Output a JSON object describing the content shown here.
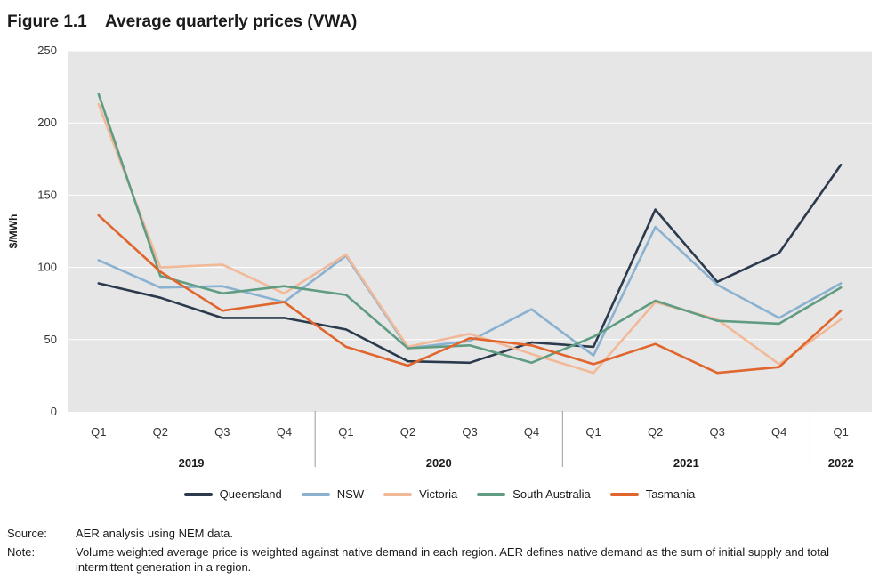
{
  "figure": {
    "number": "Figure 1.1",
    "title": "Average quarterly prices (VWA)"
  },
  "chart_data": {
    "type": "line",
    "title": "Average quarterly prices (VWA)",
    "ylabel": "$/MWh",
    "xlabel": "",
    "ylim": [
      0,
      250
    ],
    "yticks": [
      0,
      50,
      100,
      150,
      200,
      250
    ],
    "grid": true,
    "legend_position": "bottom",
    "categories": [
      "Q1",
      "Q2",
      "Q3",
      "Q4",
      "Q1",
      "Q2",
      "Q3",
      "Q4",
      "Q1",
      "Q2",
      "Q3",
      "Q4",
      "Q1"
    ],
    "years": [
      {
        "label": "2019",
        "quarters": 4
      },
      {
        "label": "2020",
        "quarters": 4
      },
      {
        "label": "2021",
        "quarters": 4
      },
      {
        "label": "2022",
        "quarters": 1
      }
    ],
    "series": [
      {
        "name": "Queensland",
        "color": "#2b3a4c",
        "values": [
          89,
          79,
          65,
          65,
          57,
          35,
          34,
          48,
          45,
          140,
          90,
          110,
          171
        ]
      },
      {
        "name": "NSW",
        "color": "#8ab2d0",
        "values": [
          105,
          86,
          87,
          76,
          108,
          44,
          49,
          71,
          39,
          128,
          88,
          65,
          89
        ]
      },
      {
        "name": "Victoria",
        "color": "#f2b998",
        "values": [
          213,
          100,
          102,
          82,
          109,
          45,
          54,
          40,
          27,
          76,
          64,
          33,
          64
        ]
      },
      {
        "name": "South Australia",
        "color": "#5f9c82",
        "values": [
          220,
          94,
          82,
          87,
          81,
          44,
          46,
          34,
          52,
          77,
          63,
          61,
          86
        ]
      },
      {
        "name": "Tasmania",
        "color": "#e0662e",
        "values": [
          136,
          97,
          70,
          76,
          45,
          32,
          51,
          46,
          33,
          47,
          27,
          31,
          70
        ]
      }
    ]
  },
  "notes": [
    {
      "label": "Source:",
      "text": "AER analysis using NEM data."
    },
    {
      "label": "Note:",
      "text": "Volume weighted average price is weighted against native demand in each region. AER defines native demand as the sum of initial supply and total intermittent generation in a region."
    }
  ]
}
